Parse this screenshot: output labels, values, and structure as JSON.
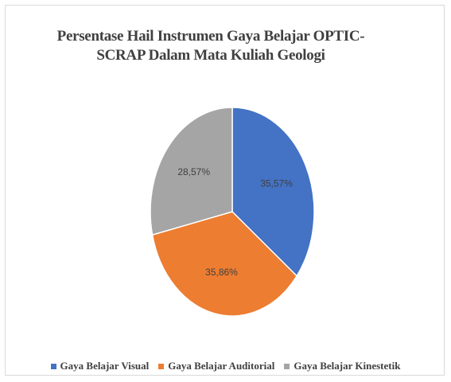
{
  "chart_data": {
    "type": "pie",
    "title": "Persentase Hail Instrumen Gaya Belajar OPTIC-SCRAP Dalam Mata Kuliah Geologi",
    "categories": [
      "Gaya Belajar Visual",
      "Gaya Belajar Auditorial",
      "Gaya Belajar Kinestetik"
    ],
    "values": [
      35.57,
      35.86,
      28.57
    ],
    "value_labels": [
      "35,57%",
      "35,86%",
      "28,57%"
    ],
    "colors": [
      "#4472c4",
      "#ed7d31",
      "#a5a5a5"
    ],
    "legend": "bottom"
  }
}
